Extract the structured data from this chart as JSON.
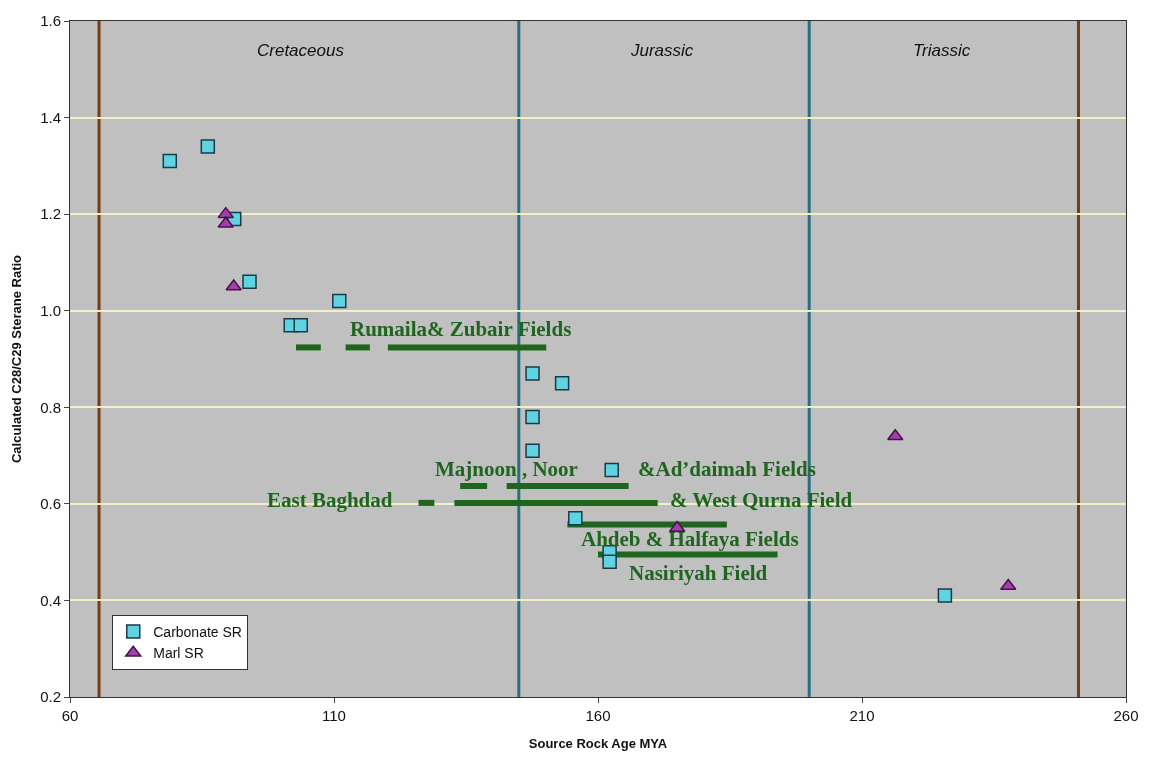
{
  "chart_data": {
    "type": "scatter",
    "xlabel": "Source Rock Age MYA",
    "ylabel": "Calculated C28/C29 Sterane Ratio",
    "xlim": [
      60,
      260
    ],
    "xticks": [
      60,
      110,
      160,
      210,
      260
    ],
    "ylim": [
      0.2,
      1.6
    ],
    "yticks": [
      0.2,
      0.4,
      0.6,
      0.8,
      {
        "value": 1,
        "label": "1.0"
      },
      1.2,
      1.4,
      1.6
    ],
    "grid": "y",
    "legend": "bottom left",
    "series": [
      {
        "name": "Carbonate SR",
        "marker": "square",
        "color": "#5fd3e0",
        "x": [
          78.9,
          86.1,
          91.1,
          94.0,
          111.0,
          101.8,
          103.7,
          147.6,
          153.2,
          147.6,
          147.6,
          162.6,
          155.7,
          162.2,
          162.2,
          225.7
        ],
        "values": [
          1.31,
          1.34,
          1.19,
          1.06,
          1.02,
          0.97,
          0.97,
          0.87,
          0.85,
          0.78,
          0.71,
          0.67,
          0.57,
          0.5,
          0.48,
          0.41
        ]
      },
      {
        "name": "Marl SR",
        "marker": "triangle",
        "color": "#a040a8",
        "x": [
          89.5,
          89.5,
          91.0,
          175.0,
          216.3,
          237.7
        ],
        "values": [
          1.2,
          1.18,
          1.05,
          0.55,
          0.74,
          0.43
        ]
      },
      {
        "type": "line",
        "marker": "none",
        "color": "#1e661e",
        "x": [
          102.8,
          107.5
        ],
        "values": [
          0.924,
          0.924
        ]
      },
      {
        "type": "line",
        "marker": "none",
        "color": "#1e661e",
        "x": [
          112.2,
          116.8
        ],
        "values": [
          0.924,
          0.924
        ]
      },
      {
        "type": "line",
        "marker": "none",
        "color": "#1e661e",
        "x": [
          120.2,
          150.2
        ],
        "values": [
          0.924,
          0.924
        ]
      },
      {
        "type": "line",
        "marker": "none",
        "color": "#1e661e",
        "x": [
          133.9,
          139.0
        ],
        "values": [
          0.637,
          0.637
        ]
      },
      {
        "type": "line",
        "marker": "none",
        "color": "#1e661e",
        "x": [
          142.7,
          165.8
        ],
        "values": [
          0.637,
          0.637
        ]
      },
      {
        "type": "line",
        "marker": "none",
        "color": "#1e661e",
        "x": [
          126.0,
          129.0
        ],
        "values": [
          0.602,
          0.602
        ]
      },
      {
        "type": "line",
        "marker": "none",
        "color": "#1e661e",
        "x": [
          132.8,
          171.3
        ],
        "values": [
          0.602,
          0.602
        ]
      },
      {
        "type": "line",
        "marker": "none",
        "color": "#1e661e",
        "x": [
          154.2,
          184.4
        ],
        "values": [
          0.557,
          0.557
        ]
      },
      {
        "type": "line",
        "marker": "none",
        "color": "#1e661e",
        "x": [
          160.0,
          194.0
        ],
        "values": [
          0.495,
          0.495
        ]
      }
    ],
    "ref_lines": [
      {
        "axis": "x",
        "value": 65.5,
        "color": "#7a3a12"
      },
      {
        "axis": "x",
        "value": 145,
        "color": "#2a6f7f"
      },
      {
        "axis": "x",
        "value": 200,
        "color": "#2a6f7f"
      },
      {
        "axis": "x",
        "value": 251,
        "color": "#7a3a12"
      }
    ],
    "annotations": [
      "Cretaceous",
      "Jurassic",
      "Triassic",
      "Rumaila& Zubair Fields",
      "Majnoon , Noor",
      "&Ad’daimah Fields",
      "East Baghdad",
      "& West Qurna Field",
      "Ahdeb & Halfaya Fields",
      "Nasiriyah Field"
    ]
  }
}
